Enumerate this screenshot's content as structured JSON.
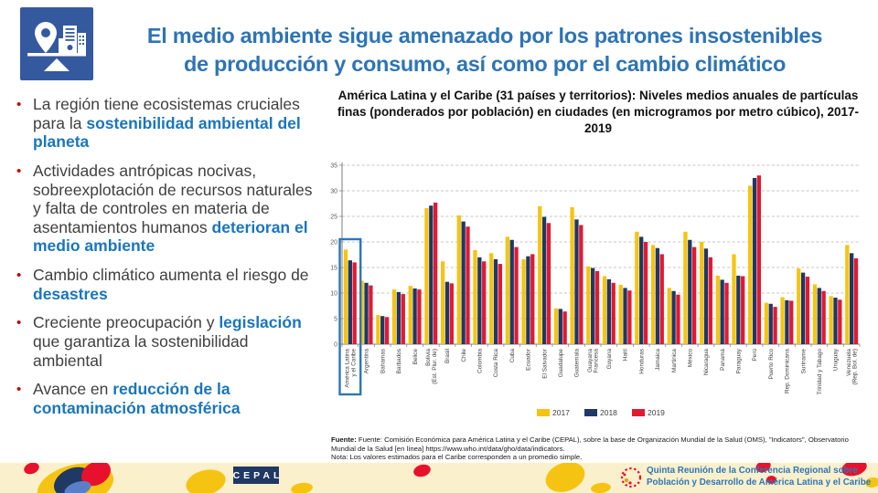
{
  "header": {
    "title_line1": "El medio ambiente sigue amenazado por los patrones insostenibles",
    "title_line2": "de producción y consumo, así como por el cambio climático"
  },
  "bullet_marker": "•",
  "bullets": [
    {
      "segments": [
        {
          "text": "La región tiene ecosistemas cruciales para la ",
          "accent": false
        },
        {
          "text": "sostenibilidad ambiental del planeta",
          "accent": true
        }
      ]
    },
    {
      "segments": [
        {
          "text": "Actividades antrópicas nocivas, sobreexplotación de recursos naturales y falta de controles en materia de asentamientos humanos ",
          "accent": false
        },
        {
          "text": "deterioran el medio ambiente",
          "accent": true
        }
      ]
    },
    {
      "segments": [
        {
          "text": "Cambio climático aumenta el riesgo de ",
          "accent": false
        },
        {
          "text": "desastres",
          "accent": true
        }
      ]
    },
    {
      "segments": [
        {
          "text": "Creciente preocupación y ",
          "accent": false
        },
        {
          "text": "legislación",
          "accent": true
        },
        {
          "text": " que garantiza la sostenibilidad ambiental",
          "accent": false
        }
      ]
    },
    {
      "segments": [
        {
          "text": "Avance en ",
          "accent": false
        },
        {
          "text": "reducción de la contaminación atmosférica",
          "accent": true
        }
      ]
    }
  ],
  "chart_data": {
    "type": "bar",
    "title": "América Latina y el Caribe (31 países y territorios): Niveles medios anuales de partículas finas (ponderados por población) en ciudades (en microgramos por metro cúbico), 2017-2019",
    "categories": [
      "América Latina\ny el Caribe",
      "Argentina",
      "Bahamas",
      "Barbados",
      "Belice",
      "Bolivia\n(Est. Plur. de)",
      "Brasil",
      "Chile",
      "Colombia",
      "Costa Rica",
      "Cuba",
      "Ecuador",
      "El Salvador",
      "Guadalupe",
      "Guatemala",
      "Guayana\nFrancesa",
      "Guyana",
      "Haití",
      "Honduras",
      "Jamaica",
      "Martinica",
      "México",
      "Nicaragua",
      "Panamá",
      "Paraguay",
      "Perú",
      "Puerto Rico",
      "Rep. Dominicana",
      "Suriname",
      "Trinidad y Tabago",
      "Uruguay",
      "Venezuela\n(Rep. Bol. de)"
    ],
    "series": [
      {
        "name": "2017",
        "color": "#F5C413",
        "values": [
          18.5,
          12.4,
          5.7,
          10.7,
          11.4,
          26.6,
          16.2,
          25.2,
          18.4,
          17.8,
          21.0,
          16.6,
          27.0,
          7.0,
          26.8,
          15.2,
          13.3,
          11.6,
          22.0,
          19.4,
          11.0,
          22.0,
          20.0,
          13.4,
          17.6,
          31.0,
          8.1,
          9.2,
          14.8,
          11.7,
          9.4,
          19.4
        ]
      },
      {
        "name": "2018",
        "color": "#1F3864",
        "values": [
          16.4,
          12.0,
          5.5,
          10.2,
          10.9,
          27.1,
          12.2,
          24.0,
          17.0,
          16.6,
          20.4,
          17.2,
          24.9,
          6.9,
          24.4,
          14.9,
          12.7,
          11.0,
          21.0,
          18.8,
          10.4,
          20.4,
          18.7,
          12.6,
          13.4,
          32.5,
          7.9,
          8.6,
          14.0,
          11.0,
          9.1,
          17.8
        ]
      },
      {
        "name": "2019",
        "color": "#E01A33",
        "values": [
          16.0,
          11.5,
          5.3,
          9.8,
          10.7,
          27.7,
          11.9,
          23.0,
          16.2,
          15.7,
          19.0,
          17.6,
          23.7,
          6.4,
          23.3,
          14.3,
          12.0,
          10.5,
          20.0,
          17.6,
          9.7,
          19.0,
          17.0,
          12.0,
          13.3,
          33.0,
          7.3,
          8.5,
          13.2,
          10.4,
          8.7,
          16.8
        ]
      }
    ],
    "ylim": [
      0,
      35
    ],
    "ytick_step": 5,
    "yticks": [
      "0",
      "5",
      "10",
      "15",
      "20",
      "25",
      "30",
      "35"
    ],
    "grid": "dashed-horizontal",
    "legend_position": "bottom",
    "highlight_category": "América Latina y el Caribe",
    "highlight_color": "#2E75B6"
  },
  "source": {
    "label": "Fuente:",
    "text": "  Fuente: Comisión Económica para América Latina y el Caribe (CEPAL), sobre la base de Organización Mundial de la Salud (OMS), \"Indicators\", Observatorio Mundial de la Salud [en línea] https://www.who.int/data/gho/data/indicators.",
    "note": "Nota: Los valores estimados para el Caribe corresponden a un promedio simple."
  },
  "footer": {
    "cepal_logo": "CEPAL",
    "conference_line1": "Quinta Reunión de la Conferencia Regional sobre",
    "conference_line2": "Población y Desarrollo de América Latina y el Caribe"
  },
  "colors": {
    "title_blue": "#2E74B5",
    "accent_blue": "#1B75BC",
    "bullet_red": "#C00000",
    "icon_navy": "#35599E",
    "footer_cream": "#FAF0CC",
    "logo_navy": "#1F3864"
  }
}
